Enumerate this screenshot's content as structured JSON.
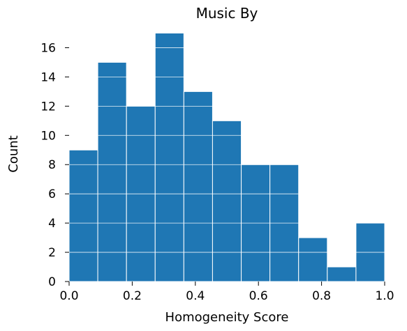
{
  "chart_data": {
    "type": "bar",
    "title": "Music By",
    "xlabel": "Homogeneity Score",
    "ylabel": "Count",
    "bin_edges": [
      0.0,
      0.0909,
      0.1818,
      0.2727,
      0.3636,
      0.4545,
      0.5455,
      0.6364,
      0.7273,
      0.8182,
      0.9091,
      1.0
    ],
    "values": [
      9,
      15,
      12,
      17,
      13,
      11,
      8,
      8,
      3,
      1,
      4
    ],
    "xlim": [
      0.0,
      1.0
    ],
    "ylim": [
      0,
      17.5
    ],
    "xticks": [
      0.0,
      0.2,
      0.4,
      0.6,
      0.8,
      1.0
    ],
    "xtick_labels": [
      "0.0",
      "0.2",
      "0.4",
      "0.6",
      "0.8",
      "1.0"
    ],
    "yticks": [
      0,
      2,
      4,
      6,
      8,
      10,
      12,
      14,
      16
    ],
    "ytick_labels": [
      "0",
      "2",
      "4",
      "6",
      "8",
      "10",
      "12",
      "14",
      "16"
    ],
    "bar_color": "#1f77b4",
    "grid": true
  }
}
